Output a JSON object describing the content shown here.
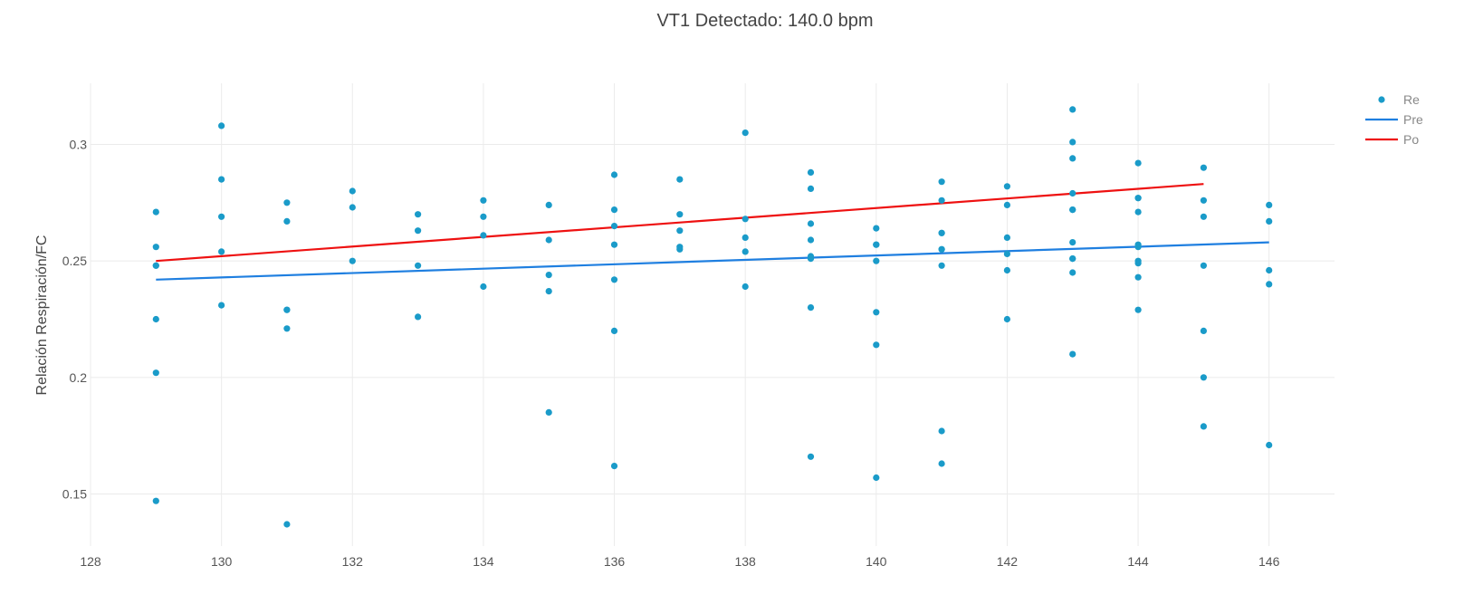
{
  "chart_data": {
    "type": "scatter",
    "title": "VT1 Detectado: 140.0 bpm",
    "xlabel": "",
    "ylabel": "Relación Respiración/FC",
    "xlim": [
      128,
      147
    ],
    "ylim": [
      0.127,
      0.327
    ],
    "x_ticks": [
      128,
      130,
      132,
      134,
      136,
      138,
      140,
      142,
      144,
      146
    ],
    "y_ticks": [
      0.15,
      0.2,
      0.25,
      0.3
    ],
    "grid": true,
    "legend_position": "right",
    "series": [
      {
        "name": "Re",
        "kind": "markers",
        "color": "#1a9bc9",
        "points": [
          [
            129,
            0.271
          ],
          [
            129,
            0.256
          ],
          [
            129,
            0.248
          ],
          [
            129,
            0.248
          ],
          [
            129,
            0.225
          ],
          [
            129,
            0.202
          ],
          [
            129,
            0.147
          ],
          [
            130,
            0.308
          ],
          [
            130,
            0.285
          ],
          [
            130,
            0.269
          ],
          [
            130,
            0.254
          ],
          [
            130,
            0.231
          ],
          [
            131,
            0.275
          ],
          [
            131,
            0.267
          ],
          [
            131,
            0.229
          ],
          [
            131,
            0.229
          ],
          [
            131,
            0.221
          ],
          [
            131,
            0.137
          ],
          [
            132,
            0.28
          ],
          [
            132,
            0.273
          ],
          [
            132,
            0.25
          ],
          [
            133,
            0.27
          ],
          [
            133,
            0.263
          ],
          [
            133,
            0.248
          ],
          [
            133,
            0.226
          ],
          [
            134,
            0.276
          ],
          [
            134,
            0.269
          ],
          [
            134,
            0.261
          ],
          [
            134,
            0.239
          ],
          [
            135,
            0.274
          ],
          [
            135,
            0.259
          ],
          [
            135,
            0.244
          ],
          [
            135,
            0.237
          ],
          [
            135,
            0.185
          ],
          [
            136,
            0.287
          ],
          [
            136,
            0.272
          ],
          [
            136,
            0.265
          ],
          [
            136,
            0.257
          ],
          [
            136,
            0.242
          ],
          [
            136,
            0.22
          ],
          [
            136,
            0.162
          ],
          [
            137,
            0.285
          ],
          [
            137,
            0.27
          ],
          [
            137,
            0.263
          ],
          [
            137,
            0.256
          ],
          [
            137,
            0.255
          ],
          [
            138,
            0.305
          ],
          [
            138,
            0.268
          ],
          [
            138,
            0.26
          ],
          [
            138,
            0.254
          ],
          [
            138,
            0.239
          ],
          [
            139,
            0.288
          ],
          [
            139,
            0.281
          ],
          [
            139,
            0.266
          ],
          [
            139,
            0.259
          ],
          [
            139,
            0.252
          ],
          [
            139,
            0.251
          ],
          [
            139,
            0.23
          ],
          [
            139,
            0.166
          ],
          [
            140,
            0.264
          ],
          [
            140,
            0.257
          ],
          [
            140,
            0.257
          ],
          [
            140,
            0.25
          ],
          [
            140,
            0.228
          ],
          [
            140,
            0.214
          ],
          [
            140,
            0.157
          ],
          [
            141,
            0.284
          ],
          [
            141,
            0.276
          ],
          [
            141,
            0.262
          ],
          [
            141,
            0.262
          ],
          [
            141,
            0.255
          ],
          [
            141,
            0.255
          ],
          [
            141,
            0.248
          ],
          [
            141,
            0.177
          ],
          [
            141,
            0.163
          ],
          [
            142,
            0.282
          ],
          [
            142,
            0.274
          ],
          [
            142,
            0.26
          ],
          [
            142,
            0.253
          ],
          [
            142,
            0.246
          ],
          [
            142,
            0.225
          ],
          [
            143,
            0.315
          ],
          [
            143,
            0.301
          ],
          [
            143,
            0.294
          ],
          [
            143,
            0.279
          ],
          [
            143,
            0.272
          ],
          [
            143,
            0.272
          ],
          [
            143,
            0.258
          ],
          [
            143,
            0.251
          ],
          [
            143,
            0.251
          ],
          [
            143,
            0.245
          ],
          [
            143,
            0.21
          ],
          [
            144,
            0.292
          ],
          [
            144,
            0.277
          ],
          [
            144,
            0.277
          ],
          [
            144,
            0.271
          ],
          [
            144,
            0.257
          ],
          [
            144,
            0.256
          ],
          [
            144,
            0.25
          ],
          [
            144,
            0.249
          ],
          [
            144,
            0.243
          ],
          [
            144,
            0.229
          ],
          [
            145,
            0.29
          ],
          [
            145,
            0.276
          ],
          [
            145,
            0.269
          ],
          [
            145,
            0.248
          ],
          [
            145,
            0.22
          ],
          [
            145,
            0.2
          ],
          [
            145,
            0.179
          ],
          [
            146,
            0.274
          ],
          [
            146,
            0.267
          ],
          [
            146,
            0.246
          ],
          [
            146,
            0.24
          ],
          [
            146,
            0.171
          ]
        ]
      },
      {
        "name": "Pre",
        "kind": "line",
        "color": "#1f7fe0",
        "points": [
          [
            129,
            0.242
          ],
          [
            146,
            0.258
          ]
        ]
      },
      {
        "name": "Po",
        "kind": "line",
        "color": "#ee1111",
        "points": [
          [
            129,
            0.25
          ],
          [
            145,
            0.283
          ]
        ]
      }
    ]
  }
}
